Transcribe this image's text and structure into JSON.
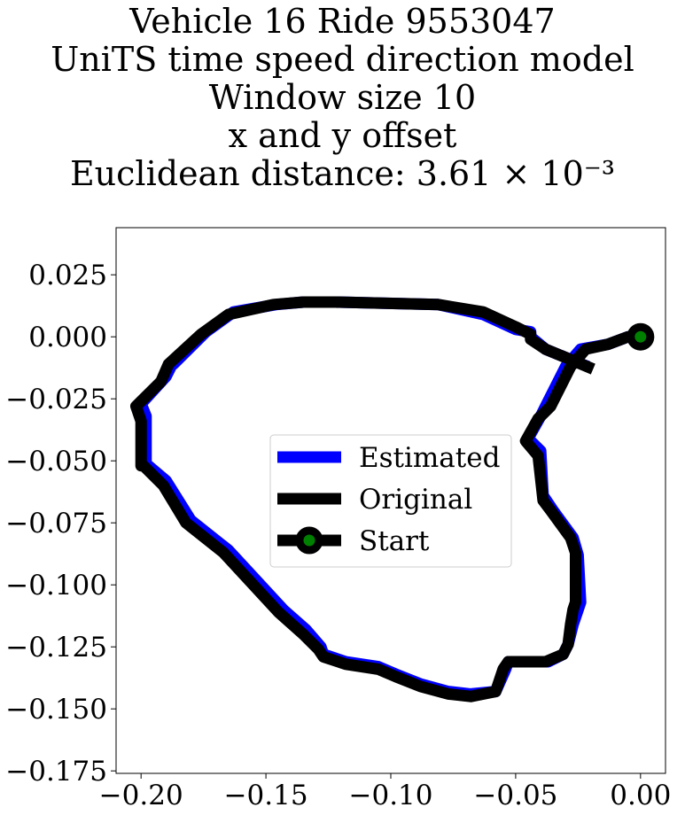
{
  "chart_data": {
    "type": "line",
    "title_lines": [
      "Vehicle 16 Ride 9553047",
      "UniTS time speed direction model",
      "Window size 10",
      "x and y offset",
      "Euclidean distance: 3.61 × 10⁻³"
    ],
    "xlabel": "",
    "ylabel": "",
    "xlim": [
      -0.21,
      0.01
    ],
    "ylim": [
      -0.176,
      0.044
    ],
    "xticks": [
      -0.2,
      -0.15,
      -0.1,
      -0.05,
      0.0
    ],
    "xtick_labels": [
      "−0.20",
      "−0.15",
      "−0.10",
      "−0.05",
      "0.00"
    ],
    "yticks": [
      0.025,
      0.0,
      -0.025,
      -0.05,
      -0.075,
      -0.1,
      -0.125,
      -0.15,
      -0.175
    ],
    "ytick_labels": [
      "0.025",
      "0.000",
      "−0.025",
      "−0.050",
      "−0.075",
      "−0.100",
      "−0.125",
      "−0.150",
      "−0.175"
    ],
    "grid": false,
    "legend_position": "center",
    "series": [
      {
        "name": "Estimated",
        "color": "#0000ff",
        "x": [
          0.0,
          -0.005,
          -0.013,
          -0.024,
          -0.03,
          -0.038,
          -0.04,
          -0.045,
          -0.04,
          -0.039,
          -0.035,
          -0.027,
          -0.025,
          -0.024,
          -0.025,
          -0.027,
          -0.029,
          -0.031,
          -0.037,
          -0.053,
          -0.054,
          -0.058,
          -0.068,
          -0.077,
          -0.088,
          -0.098,
          -0.105,
          -0.118,
          -0.127,
          -0.128,
          -0.134,
          -0.143,
          -0.165,
          -0.18,
          -0.19,
          -0.197,
          -0.198,
          -0.198,
          -0.2,
          -0.19,
          -0.187,
          -0.187,
          -0.174,
          -0.163,
          -0.146,
          -0.135,
          -0.122,
          -0.081,
          -0.063,
          -0.05,
          -0.044,
          -0.044,
          -0.038,
          -0.026,
          -0.021
        ],
        "y": [
          0.0,
          0.0,
          -0.003,
          -0.005,
          -0.012,
          -0.028,
          -0.032,
          -0.041,
          -0.046,
          -0.064,
          -0.07,
          -0.081,
          -0.088,
          -0.107,
          -0.11,
          -0.116,
          -0.124,
          -0.128,
          -0.131,
          -0.131,
          -0.134,
          -0.143,
          -0.144,
          -0.143,
          -0.14,
          -0.136,
          -0.133,
          -0.131,
          -0.128,
          -0.125,
          -0.118,
          -0.11,
          -0.086,
          -0.074,
          -0.058,
          -0.052,
          -0.052,
          -0.032,
          -0.027,
          -0.016,
          -0.01,
          -0.011,
          0.002,
          0.01,
          0.013,
          0.014,
          0.014,
          0.013,
          0.009,
          0.003,
          0.002,
          0.0,
          -0.005,
          -0.01,
          -0.012
        ]
      },
      {
        "name": "Original",
        "color": "#000000",
        "x": [
          0.0,
          -0.005,
          -0.013,
          -0.022,
          -0.028,
          -0.036,
          -0.041,
          -0.046,
          -0.041,
          -0.039,
          -0.036,
          -0.028,
          -0.026,
          -0.026,
          -0.027,
          -0.028,
          -0.029,
          -0.031,
          -0.038,
          -0.053,
          -0.055,
          -0.058,
          -0.068,
          -0.077,
          -0.088,
          -0.098,
          -0.105,
          -0.118,
          -0.127,
          -0.129,
          -0.135,
          -0.145,
          -0.167,
          -0.182,
          -0.191,
          -0.199,
          -0.2,
          -0.2,
          -0.202,
          -0.192,
          -0.189,
          -0.189,
          -0.176,
          -0.165,
          -0.147,
          -0.135,
          -0.122,
          -0.081,
          -0.063,
          -0.05,
          -0.044,
          -0.044,
          -0.038,
          -0.026,
          -0.019
        ],
        "y": [
          0.0,
          0.0,
          -0.003,
          -0.005,
          -0.012,
          -0.028,
          -0.033,
          -0.042,
          -0.048,
          -0.066,
          -0.07,
          -0.081,
          -0.087,
          -0.107,
          -0.11,
          -0.116,
          -0.124,
          -0.128,
          -0.131,
          -0.131,
          -0.134,
          -0.143,
          -0.145,
          -0.144,
          -0.141,
          -0.137,
          -0.134,
          -0.132,
          -0.129,
          -0.126,
          -0.12,
          -0.111,
          -0.087,
          -0.075,
          -0.06,
          -0.052,
          -0.052,
          -0.034,
          -0.028,
          -0.018,
          -0.011,
          -0.011,
          0.001,
          0.009,
          0.013,
          0.014,
          0.014,
          0.013,
          0.01,
          0.004,
          0.001,
          -0.001,
          -0.005,
          -0.01,
          -0.013
        ]
      }
    ],
    "start_point": {
      "name": "Start",
      "x": 0.0,
      "y": 0.0,
      "color": "#008000"
    }
  }
}
